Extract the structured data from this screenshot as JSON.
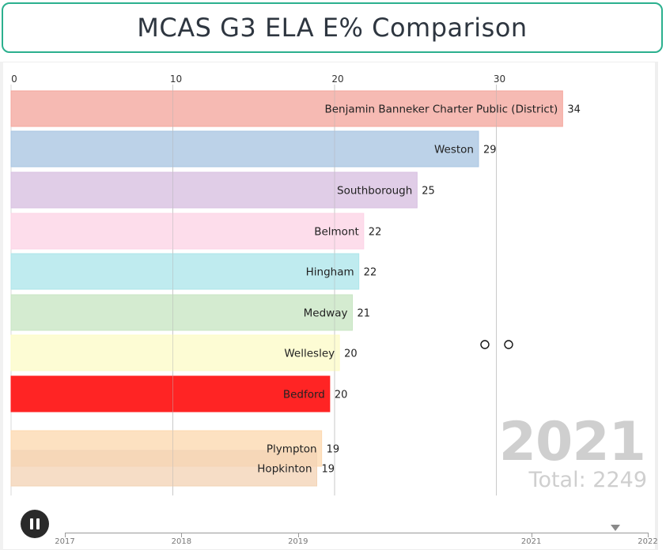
{
  "title": "MCAS G3 ELA E% Comparison",
  "chart_data": {
    "type": "bar",
    "orientation": "horizontal",
    "xlim": [
      0,
      34.2
    ],
    "xticks": [
      0,
      10,
      20,
      30
    ],
    "grid": true,
    "categories": [
      "Benjamin Banneker Charter Public (District)",
      "Weston",
      "Southborough",
      "Belmont",
      "Hingham",
      "Medway",
      "Wellesley",
      "Bedford",
      "Plympton",
      "Hopkinton"
    ],
    "values": [
      34,
      29,
      25,
      22,
      22,
      21,
      20,
      20,
      19,
      19
    ],
    "value_labels": [
      "34",
      "29",
      "25",
      "22",
      "22",
      "21",
      "20",
      "20",
      "19",
      "19"
    ],
    "bar_values": [
      34.1,
      28.9,
      25.1,
      21.8,
      21.5,
      21.1,
      20.3,
      19.7,
      19.2,
      18.9
    ],
    "colors": [
      "#f4a79d",
      "#a9c5e2",
      "#d7bfe0",
      "#fdd3e6",
      "#ade6ea",
      "#c8e6c3",
      "#fdfbc8",
      "#ff2020",
      "#fdd9b0",
      "#f3d4b6"
    ],
    "current_year": "2021",
    "total_label": "Total: 2249"
  },
  "timeline": {
    "labels": [
      "2017",
      "2018",
      "2019",
      "2021",
      "2022"
    ],
    "label_years": [
      2017,
      2018,
      2019,
      2021,
      2022
    ],
    "range": [
      2017,
      2022
    ],
    "current": 2021.72
  },
  "controls": {
    "pause_icon": "pause-icon"
  }
}
